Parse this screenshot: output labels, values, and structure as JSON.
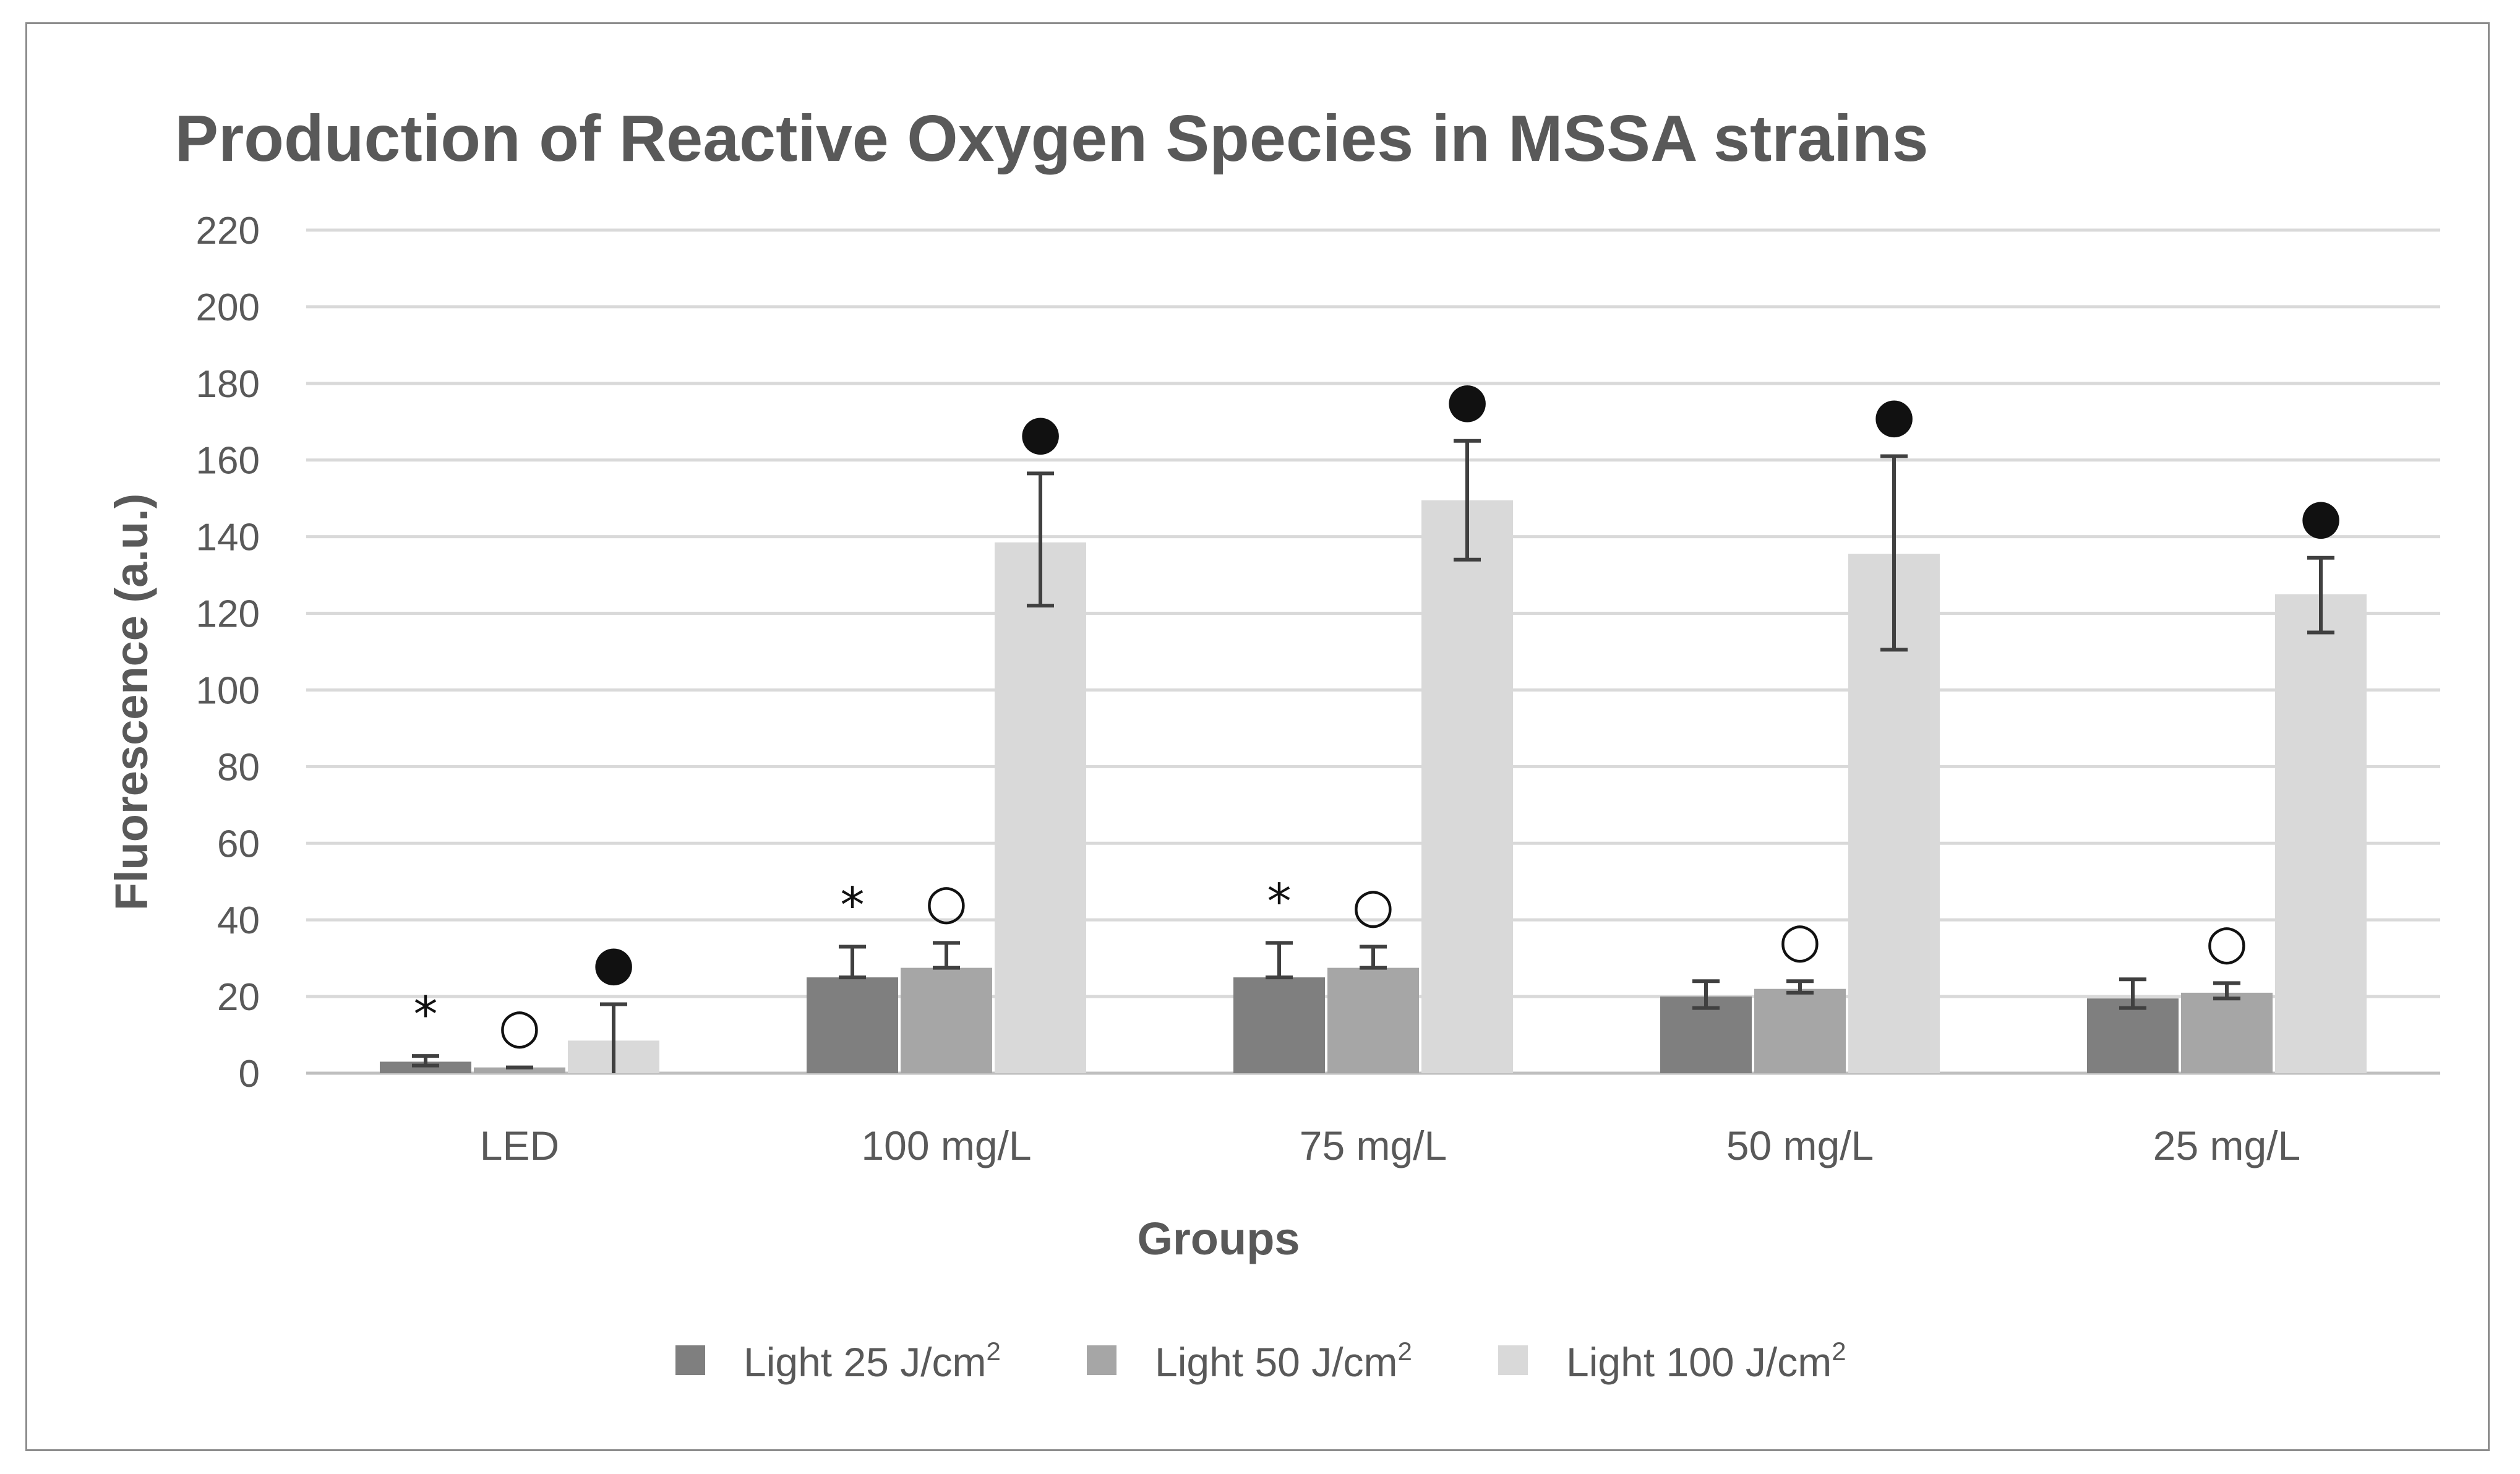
{
  "chart_data": {
    "type": "bar",
    "title": "Production of  Reactive Oxygen Species in MSSA strains",
    "xlabel": "Groups",
    "ylabel": "Fluorescence (a.u.)",
    "ylim": [
      0,
      220
    ],
    "yticks": [
      0,
      20,
      40,
      60,
      80,
      100,
      120,
      140,
      160,
      180,
      200,
      220
    ],
    "grid": true,
    "legend_position": "bottom",
    "categories": [
      "LED",
      "100 mg/L",
      "75 mg/L",
      "50 mg/L",
      "25 mg/L"
    ],
    "series": [
      {
        "name": "Light 25 J/cm",
        "unit_sup": "2",
        "color": "#7f7f7f",
        "values": [
          3,
          25,
          25,
          20,
          19.5
        ],
        "err_hi": [
          4.5,
          33,
          34,
          24,
          24.5
        ],
        "err_lo": [
          2,
          25,
          25,
          17,
          17
        ],
        "markers": [
          "*",
          "*",
          "*",
          "",
          ""
        ]
      },
      {
        "name": "Light 50 J/cm",
        "unit_sup": "2",
        "color": "#a6a6a6",
        "values": [
          1.5,
          27.5,
          27.5,
          22,
          21
        ],
        "err_hi": [
          1.5,
          34,
          33,
          24,
          23.5
        ],
        "err_lo": [
          1.5,
          27.5,
          27.5,
          21,
          19.5
        ],
        "markers": [
          "○",
          "○",
          "○",
          "○",
          "○"
        ]
      },
      {
        "name": "Light 100 J/cm",
        "unit_sup": "2",
        "color": "#d9d9d9",
        "values": [
          8.5,
          138.5,
          149.5,
          135.5,
          125
        ],
        "err_hi": [
          18,
          156.5,
          165,
          161,
          134.5
        ],
        "err_lo": [
          0,
          122,
          134,
          110.5,
          115
        ],
        "markers": [
          "●",
          "●",
          "●",
          "●",
          "●"
        ]
      }
    ]
  }
}
